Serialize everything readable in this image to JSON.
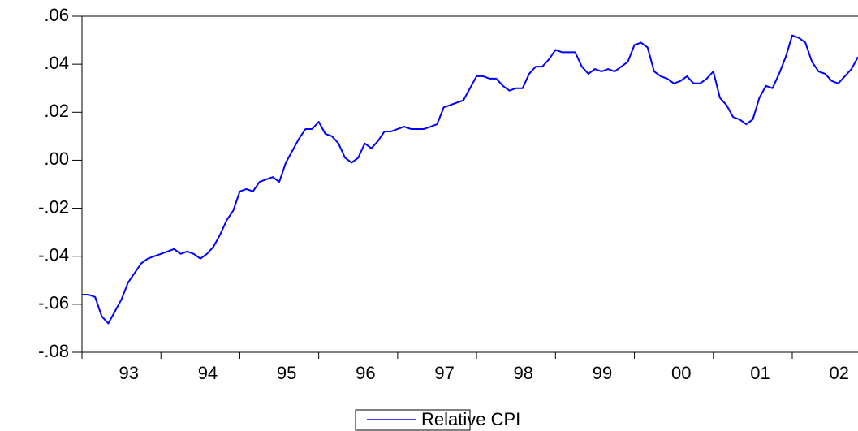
{
  "chart_data": {
    "type": "line",
    "categories": [
      null,
      null,
      null,
      null,
      null,
      null,
      null,
      "93",
      null,
      null,
      null,
      null,
      null,
      null,
      null,
      null,
      null,
      null,
      null,
      "94",
      null,
      null,
      null,
      null,
      null,
      null,
      null,
      null,
      null,
      null,
      null,
      "95",
      null,
      null,
      null,
      null,
      null,
      null,
      null,
      null,
      null,
      null,
      null,
      "96",
      null,
      null,
      null,
      null,
      null,
      null,
      null,
      null,
      null,
      null,
      null,
      "97",
      null,
      null,
      null,
      null,
      null,
      null,
      null,
      null,
      null,
      null,
      null,
      "98",
      null,
      null,
      null,
      null,
      null,
      null,
      null,
      null,
      null,
      null,
      null,
      "99",
      null,
      null,
      null,
      null,
      null,
      null,
      null,
      null,
      null,
      null,
      null,
      "00",
      null,
      null,
      null,
      null,
      null,
      null,
      null,
      null,
      null,
      null,
      null,
      "01",
      null,
      null,
      null,
      null,
      null,
      null,
      null,
      null,
      null,
      null,
      null,
      "02",
      null,
      null,
      null
    ],
    "series": [
      {
        "name": "Relative CPI",
        "color": "#0000ff",
        "values": [
          -0.056,
          -0.056,
          -0.057,
          -0.065,
          -0.068,
          -0.063,
          -0.058,
          -0.051,
          -0.047,
          -0.043,
          -0.041,
          -0.04,
          -0.039,
          -0.038,
          -0.037,
          -0.039,
          -0.038,
          -0.039,
          -0.041,
          -0.039,
          -0.036,
          -0.031,
          -0.025,
          -0.021,
          -0.013,
          -0.012,
          -0.013,
          -0.009,
          -0.008,
          -0.007,
          -0.009,
          -0.001,
          0.004,
          0.009,
          0.013,
          0.013,
          0.016,
          0.011,
          0.01,
          0.007,
          0.001,
          -0.001,
          0.001,
          0.007,
          0.005,
          0.008,
          0.012,
          0.012,
          0.013,
          0.014,
          0.013,
          0.013,
          0.013,
          0.014,
          0.015,
          0.022,
          0.023,
          0.024,
          0.025,
          0.03,
          0.035,
          0.035,
          0.034,
          0.034,
          0.031,
          0.029,
          0.03,
          0.03,
          0.036,
          0.039,
          0.039,
          0.042,
          0.046,
          0.045,
          0.045,
          0.045,
          0.039,
          0.036,
          0.038,
          0.037,
          0.038,
          0.037,
          0.039,
          0.041,
          0.048,
          0.049,
          0.047,
          0.037,
          0.035,
          0.034,
          0.032,
          0.033,
          0.035,
          0.032,
          0.032,
          0.034,
          0.037,
          0.026,
          0.023,
          0.018,
          0.017,
          0.015,
          0.017,
          0.026,
          0.031,
          0.03,
          0.036,
          0.043,
          0.052,
          0.051,
          0.049,
          0.041,
          0.037,
          0.036,
          0.033,
          0.032,
          0.035,
          0.038,
          0.043
        ]
      }
    ],
    "ylim": [
      -0.08,
      0.06
    ],
    "yticks": [
      {
        "value": 0.06,
        "label": ".06"
      },
      {
        "value": 0.04,
        "label": ".04"
      },
      {
        "value": 0.02,
        "label": ".02"
      },
      {
        "value": 0,
        "label": ".00"
      },
      {
        "value": -0.02,
        "label": "-.02"
      },
      {
        "value": -0.04,
        "label": "-.04"
      },
      {
        "value": -0.06,
        "label": "-.06"
      },
      {
        "value": -0.08,
        "label": "-.08"
      }
    ],
    "legend": "bottom"
  }
}
